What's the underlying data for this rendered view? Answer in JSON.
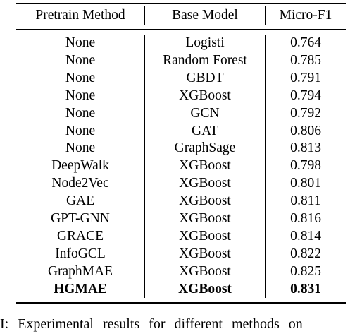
{
  "table": {
    "headers": [
      "Pretrain Method",
      "Base Model",
      "Micro-F1"
    ],
    "rows": [
      {
        "pretrain": "None",
        "model": "Logisti",
        "f1": "0.764",
        "bold": false
      },
      {
        "pretrain": "None",
        "model": "Random Forest",
        "f1": "0.785",
        "bold": false
      },
      {
        "pretrain": "None",
        "model": "GBDT",
        "f1": "0.791",
        "bold": false
      },
      {
        "pretrain": "None",
        "model": "XGBoost",
        "f1": "0.794",
        "bold": false
      },
      {
        "pretrain": "None",
        "model": "GCN",
        "f1": "0.792",
        "bold": false
      },
      {
        "pretrain": "None",
        "model": "GAT",
        "f1": "0.806",
        "bold": false
      },
      {
        "pretrain": "None",
        "model": "GraphSage",
        "f1": "0.813",
        "bold": false
      },
      {
        "pretrain": "DeepWalk",
        "model": "XGBoost",
        "f1": "0.798",
        "bold": false
      },
      {
        "pretrain": "Node2Vec",
        "model": "XGBoost",
        "f1": "0.801",
        "bold": false
      },
      {
        "pretrain": "GAE",
        "model": "XGBoost",
        "f1": "0.811",
        "bold": false
      },
      {
        "pretrain": "GPT-GNN",
        "model": "XGBoost",
        "f1": "0.816",
        "bold": false
      },
      {
        "pretrain": "GRACE",
        "model": "XGBoost",
        "f1": "0.814",
        "bold": false
      },
      {
        "pretrain": "InfoGCL",
        "model": "XGBoost",
        "f1": "0.822",
        "bold": false
      },
      {
        "pretrain": "GraphMAE",
        "model": "XGBoost",
        "f1": "0.825",
        "bold": false
      },
      {
        "pretrain": "HGMAE",
        "model": "XGBoost",
        "f1": "0.831",
        "bold": true
      }
    ]
  },
  "caption": "I: Experimental results for different methods on"
}
